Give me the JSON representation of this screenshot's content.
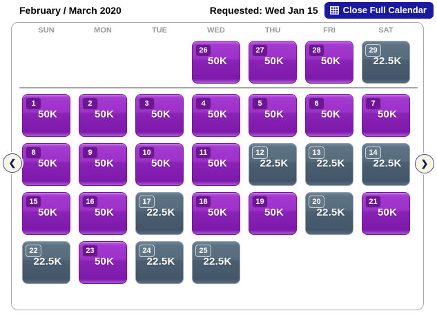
{
  "header": {
    "title": "February / March 2020",
    "requested": "Requested: Wed Jan 15",
    "close_button_label": "Close Full Calendar"
  },
  "nav": {
    "prev_icon": "❮",
    "next_icon": "❯"
  },
  "colors": {
    "button_navy": "#1a1a9e",
    "award_high_purple": "#9c30c8",
    "award_high_border": "#7a129e",
    "award_high_badge": "#6e1596",
    "award_low_slate": "#566b7c",
    "award_low_border": "#93a2ad",
    "arrow_bg_cream": "#faf5e0",
    "arrow_navy": "#101c66",
    "day_header_gray": "#999999",
    "container_border": "#aaaaaa",
    "month_separator": "#a5a5a5"
  },
  "calendar": {
    "day_headers": [
      "SUN",
      "MON",
      "TUE",
      "WED",
      "THU",
      "FRI",
      "SAT"
    ],
    "rows": [
      {
        "cells": [
          null,
          null,
          null,
          {
            "day": "26",
            "price": "50K",
            "level": "high"
          },
          {
            "day": "27",
            "price": "50K",
            "level": "high"
          },
          {
            "day": "28",
            "price": "50K",
            "level": "high"
          },
          {
            "day": "29",
            "price": "22.5K",
            "level": "low"
          }
        ]
      },
      {
        "cells": [
          {
            "day": "1",
            "price": "50K",
            "level": "high"
          },
          {
            "day": "2",
            "price": "50K",
            "level": "high"
          },
          {
            "day": "3",
            "price": "50K",
            "level": "high"
          },
          {
            "day": "4",
            "price": "50K",
            "level": "high"
          },
          {
            "day": "5",
            "price": "50K",
            "level": "high"
          },
          {
            "day": "6",
            "price": "50K",
            "level": "high"
          },
          {
            "day": "7",
            "price": "50K",
            "level": "high"
          }
        ]
      },
      {
        "cells": [
          {
            "day": "8",
            "price": "50K",
            "level": "high"
          },
          {
            "day": "9",
            "price": "50K",
            "level": "high"
          },
          {
            "day": "10",
            "price": "50K",
            "level": "high"
          },
          {
            "day": "11",
            "price": "50K",
            "level": "high"
          },
          {
            "day": "12",
            "price": "22.5K",
            "level": "low"
          },
          {
            "day": "13",
            "price": "22.5K",
            "level": "low"
          },
          {
            "day": "14",
            "price": "22.5K",
            "level": "low"
          }
        ]
      },
      {
        "cells": [
          {
            "day": "15",
            "price": "50K",
            "level": "high"
          },
          {
            "day": "16",
            "price": "50K",
            "level": "high"
          },
          {
            "day": "17",
            "price": "22.5K",
            "level": "low"
          },
          {
            "day": "18",
            "price": "50K",
            "level": "high"
          },
          {
            "day": "19",
            "price": "50K",
            "level": "high"
          },
          {
            "day": "20",
            "price": "22.5K",
            "level": "low"
          },
          {
            "day": "21",
            "price": "50K",
            "level": "high"
          }
        ]
      },
      {
        "cells": [
          {
            "day": "22",
            "price": "22.5K",
            "level": "low"
          },
          {
            "day": "23",
            "price": "50K",
            "level": "high"
          },
          {
            "day": "24",
            "price": "22.5K",
            "level": "low"
          },
          {
            "day": "25",
            "price": "22.5K",
            "level": "low"
          },
          null,
          null,
          null
        ]
      }
    ]
  }
}
